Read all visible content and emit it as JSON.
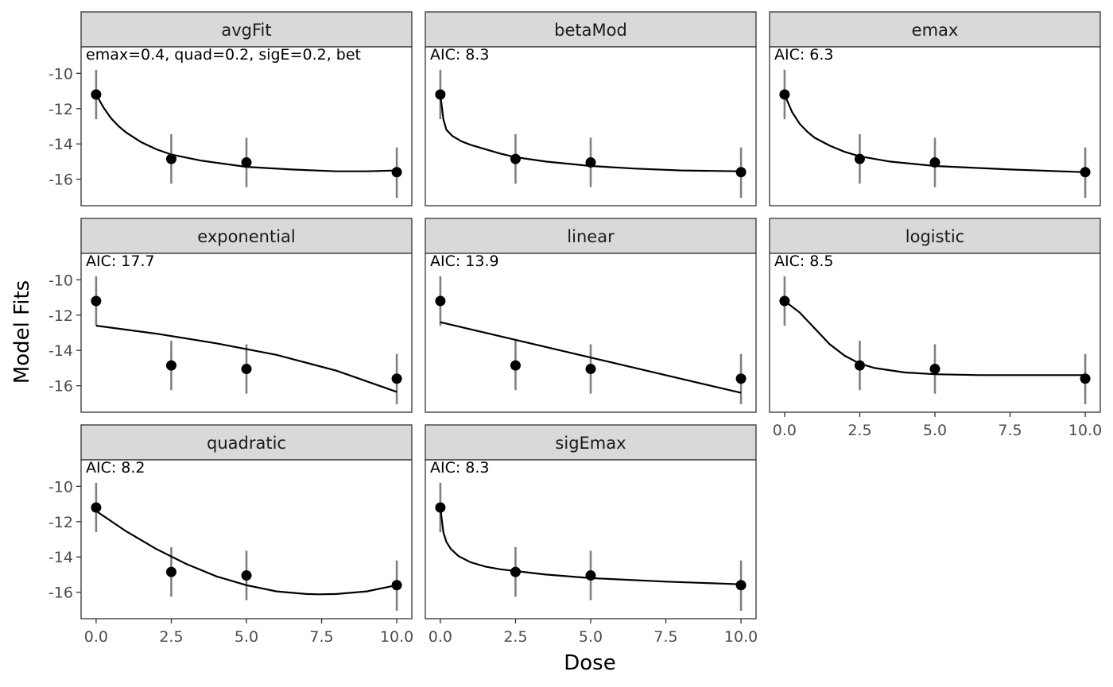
{
  "chart_data": {
    "type": "line",
    "xlabel": "Dose",
    "ylabel": "Model Fits",
    "xlim": [
      -0.5,
      10.5
    ],
    "ylim": [
      -17.5,
      -8.5
    ],
    "x_ticks": [
      0.0,
      2.5,
      5.0,
      7.5,
      10.0
    ],
    "x_tick_labels": [
      "0.0",
      "2.5",
      "5.0",
      "7.5",
      "10.0"
    ],
    "y_ticks": [
      -10,
      -12,
      -14,
      -16
    ],
    "y_tick_labels": [
      "-10",
      "-12",
      "-14",
      "-16"
    ],
    "observed": {
      "dose": [
        0,
        2.5,
        5,
        10
      ],
      "mean": [
        -11.2,
        -14.85,
        -15.05,
        -15.6
      ],
      "lower": [
        -12.6,
        -16.25,
        -16.45,
        -17.05
      ],
      "upper": [
        -9.8,
        -13.45,
        -13.65,
        -14.2
      ]
    },
    "panels": [
      {
        "name": "avgFit",
        "annotation": "emax=0.4, quad=0.2, sigE=0.2, bet",
        "x_axis_labels": false,
        "curve": [
          [
            0,
            -11.2
          ],
          [
            0.1,
            -11.5
          ],
          [
            0.25,
            -11.95
          ],
          [
            0.5,
            -12.55
          ],
          [
            0.75,
            -13.0
          ],
          [
            1.0,
            -13.35
          ],
          [
            1.5,
            -13.9
          ],
          [
            2.0,
            -14.3
          ],
          [
            2.5,
            -14.6
          ],
          [
            3.5,
            -14.95
          ],
          [
            5.0,
            -15.3
          ],
          [
            6.5,
            -15.45
          ],
          [
            8.0,
            -15.55
          ],
          [
            9.0,
            -15.55
          ],
          [
            10.0,
            -15.5
          ]
        ]
      },
      {
        "name": "betaMod",
        "annotation": "AIC: 8.3",
        "x_axis_labels": false,
        "curve": [
          [
            0,
            -11.2
          ],
          [
            0.1,
            -12.6
          ],
          [
            0.2,
            -13.2
          ],
          [
            0.4,
            -13.55
          ],
          [
            0.7,
            -13.85
          ],
          [
            1.0,
            -14.05
          ],
          [
            1.5,
            -14.3
          ],
          [
            2.0,
            -14.55
          ],
          [
            2.5,
            -14.75
          ],
          [
            3.5,
            -15.0
          ],
          [
            5.0,
            -15.25
          ],
          [
            6.5,
            -15.4
          ],
          [
            8.0,
            -15.5
          ],
          [
            10.0,
            -15.55
          ]
        ]
      },
      {
        "name": "emax",
        "annotation": "AIC: 6.3",
        "x_axis_labels": false,
        "curve": [
          [
            0,
            -11.2
          ],
          [
            0.1,
            -11.6
          ],
          [
            0.25,
            -12.2
          ],
          [
            0.5,
            -12.85
          ],
          [
            0.75,
            -13.3
          ],
          [
            1.0,
            -13.65
          ],
          [
            1.5,
            -14.1
          ],
          [
            2.0,
            -14.45
          ],
          [
            2.5,
            -14.7
          ],
          [
            3.5,
            -15.0
          ],
          [
            5.0,
            -15.25
          ],
          [
            7.5,
            -15.45
          ],
          [
            10.0,
            -15.6
          ]
        ]
      },
      {
        "name": "exponential",
        "annotation": "AIC: 17.7",
        "x_axis_labels": false,
        "curve": [
          [
            0,
            -12.6
          ],
          [
            2.0,
            -13.05
          ],
          [
            4.0,
            -13.6
          ],
          [
            6.0,
            -14.25
          ],
          [
            8.0,
            -15.15
          ],
          [
            10.0,
            -16.35
          ]
        ]
      },
      {
        "name": "linear",
        "annotation": "AIC: 13.9",
        "x_axis_labels": false,
        "curve": [
          [
            0,
            -12.4
          ],
          [
            10.0,
            -16.4
          ]
        ]
      },
      {
        "name": "logistic",
        "annotation": "AIC: 8.5",
        "x_axis_labels": true,
        "curve": [
          [
            0,
            -11.2
          ],
          [
            0.5,
            -11.85
          ],
          [
            1.0,
            -12.75
          ],
          [
            1.5,
            -13.65
          ],
          [
            2.0,
            -14.3
          ],
          [
            2.5,
            -14.75
          ],
          [
            3.0,
            -15.0
          ],
          [
            4.0,
            -15.25
          ],
          [
            5.0,
            -15.35
          ],
          [
            6.5,
            -15.4
          ],
          [
            8.0,
            -15.4
          ],
          [
            10.0,
            -15.4
          ]
        ]
      },
      {
        "name": "quadratic",
        "annotation": "AIC: 8.2",
        "x_axis_labels": true,
        "curve": [
          [
            0,
            -11.4
          ],
          [
            1.0,
            -12.55
          ],
          [
            2.0,
            -13.55
          ],
          [
            3.0,
            -14.4
          ],
          [
            4.0,
            -15.1
          ],
          [
            5.0,
            -15.6
          ],
          [
            6.0,
            -15.95
          ],
          [
            7.0,
            -16.1
          ],
          [
            7.4,
            -16.12
          ],
          [
            8.0,
            -16.1
          ],
          [
            9.0,
            -15.95
          ],
          [
            10.0,
            -15.6
          ]
        ]
      },
      {
        "name": "sigEmax",
        "annotation": "AIC: 8.3",
        "x_axis_labels": true,
        "curve": [
          [
            0,
            -11.2
          ],
          [
            0.1,
            -12.6
          ],
          [
            0.2,
            -13.15
          ],
          [
            0.35,
            -13.55
          ],
          [
            0.6,
            -13.95
          ],
          [
            1.0,
            -14.3
          ],
          [
            1.5,
            -14.55
          ],
          [
            2.0,
            -14.7
          ],
          [
            2.5,
            -14.8
          ],
          [
            3.5,
            -15.0
          ],
          [
            5.0,
            -15.2
          ],
          [
            7.5,
            -15.4
          ],
          [
            10.0,
            -15.55
          ]
        ]
      }
    ]
  }
}
